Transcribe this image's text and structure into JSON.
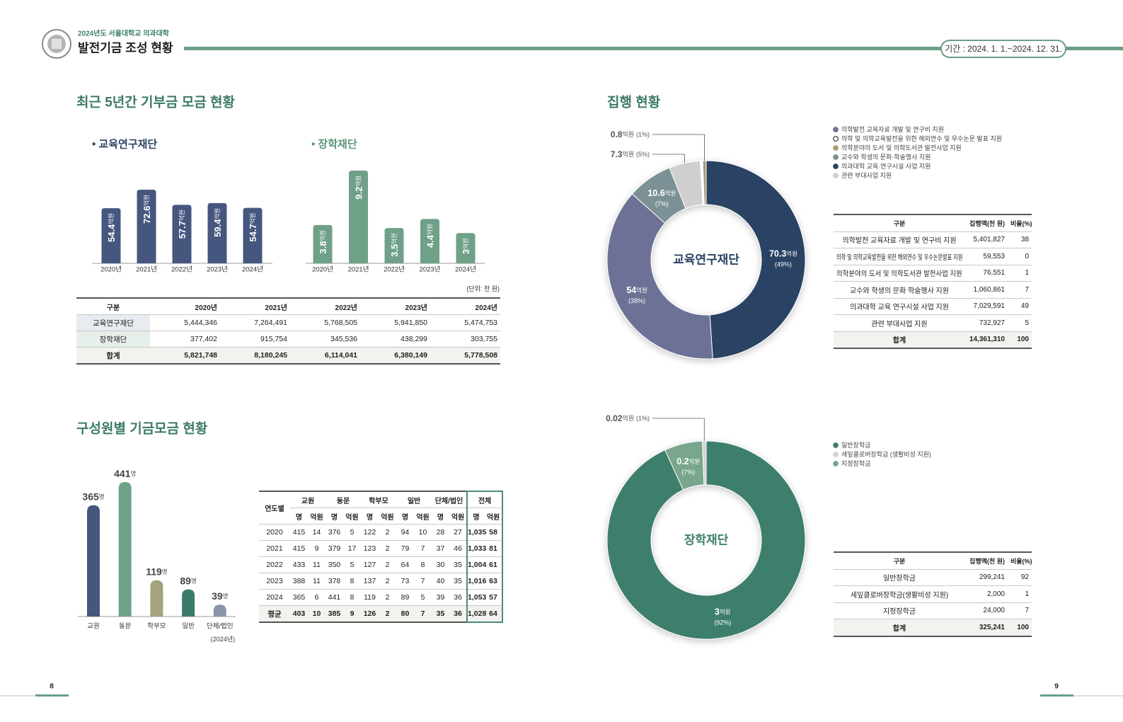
{
  "header": {
    "subtitle": "2024년도 서울대학교 의과대학",
    "title": "발전기금 조성 현황",
    "period": "기간 : 2024. 1. 1.~2024. 12. 31."
  },
  "page_numbers": [
    "8",
    "9"
  ],
  "donation_section": {
    "title": "최근 5년간 기부금 모금 현황",
    "unit_note": "(단위: 천 원)",
    "table": {
      "header": [
        "구분",
        "2020년",
        "2021년",
        "2022년",
        "2023년",
        "2024년"
      ],
      "rows": [
        [
          "교육연구재단",
          "5,444,346",
          "7,264,491",
          "5,768,505",
          "5,941,850",
          "5,474,753"
        ],
        [
          "장학재단",
          "377,402",
          "915,754",
          "345,536",
          "438,299",
          "303,755"
        ],
        [
          "합계",
          "5,821,748",
          "8,180,245",
          "6,114,041",
          "6,380,149",
          "5,778,508"
        ]
      ]
    }
  },
  "member_section": {
    "title": "구성원별 기금모금 현황",
    "note": "(2024년)",
    "table": {
      "header_top": [
        "연도별",
        "교원",
        "동문",
        "학부모",
        "일반",
        "단체/법인",
        "전체"
      ],
      "header_sub": [
        "명",
        "억원",
        "명",
        "억원",
        "명",
        "억원",
        "명",
        "억원",
        "명",
        "억원",
        "명",
        "억원"
      ],
      "rows": [
        [
          "2020",
          "415",
          "14",
          "376",
          "5",
          "122",
          "2",
          "94",
          "10",
          "28",
          "27",
          "1,035",
          "58"
        ],
        [
          "2021",
          "415",
          "9",
          "379",
          "17",
          "123",
          "2",
          "79",
          "7",
          "37",
          "46",
          "1,033",
          "81"
        ],
        [
          "2022",
          "433",
          "11",
          "350",
          "5",
          "127",
          "2",
          "64",
          "8",
          "30",
          "35",
          "1,004",
          "61"
        ],
        [
          "2023",
          "388",
          "11",
          "378",
          "8",
          "137",
          "2",
          "73",
          "7",
          "40",
          "35",
          "1,016",
          "63"
        ],
        [
          "2024",
          "365",
          "6",
          "441",
          "8",
          "119",
          "2",
          "89",
          "5",
          "39",
          "36",
          "1,053",
          "57"
        ],
        [
          "평균",
          "403",
          "10",
          "385",
          "9",
          "126",
          "2",
          "80",
          "7",
          "35",
          "36",
          "1,028",
          "64"
        ]
      ]
    }
  },
  "spending_section": {
    "title": "집행 현황",
    "tables": [
      {
        "header": [
          "구분",
          "집행액(천 원)",
          "비율(%)"
        ],
        "rows": [
          [
            "의학발전 교육자료 개발 및 연구비 지원",
            "5,401,827",
            "38"
          ],
          [
            "의학 및 의학교육발전을 위한 해외연수 및 우수논문발표 지원",
            "59,553",
            "0"
          ],
          [
            "의학분야의 도서 및 의학도서관 발전사업 지원",
            "76,551",
            "1"
          ],
          [
            "교수와 학생의 문화 학술행사 지원",
            "1,060,861",
            "7"
          ],
          [
            "의과대학 교육 연구시설 사업 지원",
            "7,029,591",
            "49"
          ],
          [
            "관련 부대사업 지원",
            "732,927",
            "5"
          ],
          [
            "합계",
            "14,361,310",
            "100"
          ]
        ]
      },
      {
        "header": [
          "구분",
          "집행액(천 원)",
          "비율(%)"
        ],
        "rows": [
          [
            "일반장학금",
            "299,241",
            "92"
          ],
          [
            "세잎클로버장학금(생활비성 지원)",
            "2,000",
            "1"
          ],
          [
            "지정장학금",
            "24,000",
            "7"
          ],
          [
            "합계",
            "325,241",
            "100"
          ]
        ]
      }
    ]
  },
  "chart_data": [
    {
      "type": "bar",
      "title": "• 교육연구재단",
      "categories": [
        "2020년",
        "2021년",
        "2022년",
        "2023년",
        "2024년"
      ],
      "values": [
        54.4,
        72.6,
        57.7,
        59.4,
        54.7
      ],
      "unit": "억원",
      "color": "#46577f"
    },
    {
      "type": "bar",
      "title": "• 장학재단",
      "categories": [
        "2020년",
        "2021년",
        "2022년",
        "2023년",
        "2024년"
      ],
      "values": [
        3.8,
        9.2,
        3.5,
        4.4,
        3
      ],
      "unit": "억원",
      "color": "#6fa088"
    },
    {
      "type": "bar",
      "categories": [
        "교원",
        "동문",
        "학부모",
        "일반",
        "단체/법인"
      ],
      "values": [
        365,
        441,
        119,
        89,
        39
      ],
      "unit": "명",
      "colors": [
        "#46577f",
        "#6fa088",
        "#a3a37c",
        "#3d7a6a",
        "#8a95a8"
      ]
    },
    {
      "type": "donut",
      "center_label": "교육연구재단",
      "unit": "억원",
      "values": [
        70.3,
        54,
        10.6,
        7.3,
        0.6,
        0.8
      ],
      "share_labels": [
        "(49%)",
        "(38%)",
        "(7%)",
        "(5%)",
        null,
        "(1%)"
      ],
      "colors": [
        "#2b4363",
        "#6d7195",
        "#7b9196",
        "#cfcfcf",
        "#ffffff",
        "#ad9a77"
      ],
      "legend": [
        {
          "name": "의학발전 교육자료 개발 및 연구비 지원",
          "color": "#6d7195"
        },
        {
          "name": "의학 및 의학교육발전을 위한 해외연수 및 우수논문 발표 지원",
          "color": "#ffffff"
        },
        {
          "name": "의학분야의 도서 및 의학도서관 발전사업 지원",
          "color": "#ad9a77"
        },
        {
          "name": "교수와 학생의 문화·학술행사 지원",
          "color": "#7b9196"
        },
        {
          "name": "의과대학 교육·연구시설 사업 지원",
          "color": "#2b4363"
        },
        {
          "name": "관련 부대사업 지원",
          "color": "#cfcfcf"
        }
      ]
    },
    {
      "type": "donut",
      "center_label": "장학재단",
      "unit": "억원",
      "values": [
        3,
        0.2,
        0.02
      ],
      "share_labels": [
        "(92%)",
        "(7%)",
        "(1%)"
      ],
      "colors": [
        "#3e7f6c",
        "#79a68d",
        "#d3d3d3"
      ],
      "legend": [
        {
          "name": "일반장학금",
          "color": "#3e7f6c"
        },
        {
          "name": "세잎클로버장학금 (생활비성 지원)",
          "color": "#d3d3d3"
        },
        {
          "name": "지정장학금",
          "color": "#79a68d"
        }
      ]
    }
  ]
}
